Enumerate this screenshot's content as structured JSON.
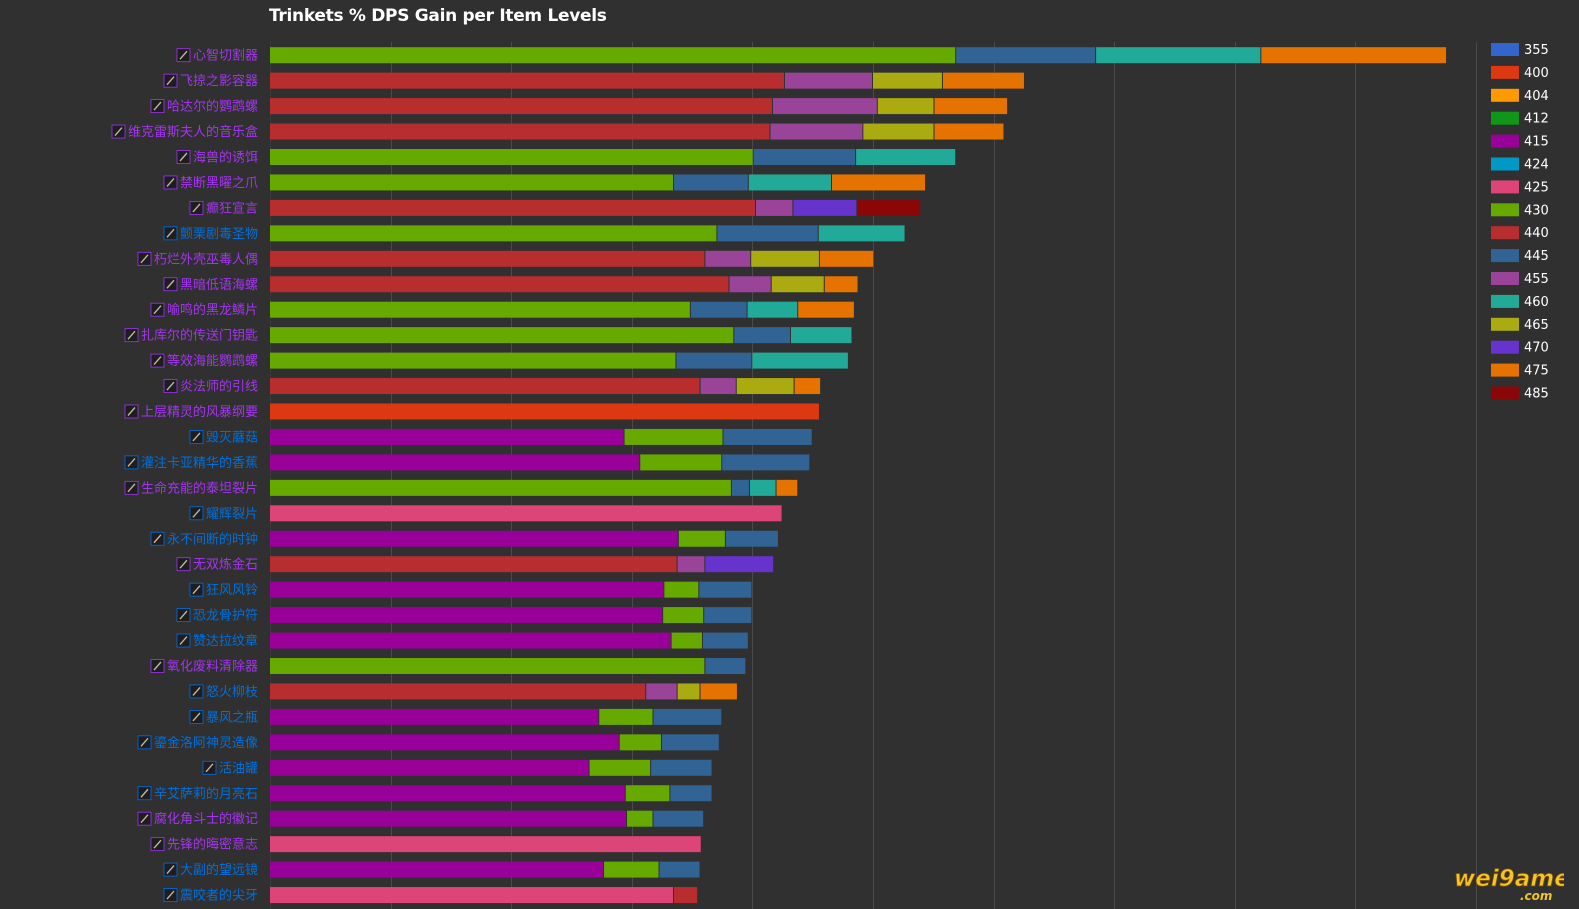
{
  "chart_data": {
    "type": "bar",
    "orientation": "horizontal",
    "stacked": true,
    "title": "Trinkets % DPS Gain per Item Levels",
    "grid": true,
    "legend_placement": "right",
    "legend": [
      {
        "name": "355",
        "color": "#3366cc"
      },
      {
        "name": "400",
        "color": "#dc3912"
      },
      {
        "name": "404",
        "color": "#ff9900"
      },
      {
        "name": "412",
        "color": "#109618"
      },
      {
        "name": "415",
        "color": "#990099"
      },
      {
        "name": "424",
        "color": "#0099c6"
      },
      {
        "name": "425",
        "color": "#dd4477"
      },
      {
        "name": "430",
        "color": "#66aa00"
      },
      {
        "name": "440",
        "color": "#b82e2e"
      },
      {
        "name": "445",
        "color": "#316395"
      },
      {
        "name": "455",
        "color": "#994499"
      },
      {
        "name": "460",
        "color": "#22aa99"
      },
      {
        "name": "465",
        "color": "#aaaa11"
      },
      {
        "name": "470",
        "color": "#6633cc"
      },
      {
        "name": "475",
        "color": "#e67300"
      },
      {
        "name": "485",
        "color": "#8b0707"
      }
    ],
    "xlim": [
      0,
      10
    ],
    "rows": [
      {
        "label": "心智切割器",
        "label_color": "#a335ee",
        "segments": [
          [
            "430",
            5.69
          ],
          [
            "445",
            1.16
          ],
          [
            "460",
            1.37
          ],
          [
            "475",
            1.54
          ]
        ]
      },
      {
        "label": "飞掠之影容器",
        "label_color": "#a335ee",
        "segments": [
          [
            "440",
            4.27
          ],
          [
            "455",
            0.73
          ],
          [
            "465",
            0.58
          ],
          [
            "475",
            0.68
          ]
        ]
      },
      {
        "label": "哈达尔的鹦鹉螺",
        "label_color": "#a335ee",
        "segments": [
          [
            "440",
            4.17
          ],
          [
            "455",
            0.87
          ],
          [
            "465",
            0.47
          ],
          [
            "475",
            0.61
          ]
        ]
      },
      {
        "label": "维克雷斯夫人的音乐盒",
        "label_color": "#a335ee",
        "segments": [
          [
            "440",
            4.15
          ],
          [
            "455",
            0.77
          ],
          [
            "465",
            0.59
          ],
          [
            "475",
            0.58
          ]
        ]
      },
      {
        "label": "海兽的诱饵",
        "label_color": "#a335ee",
        "segments": [
          [
            "430",
            4.01
          ],
          [
            "445",
            0.85
          ],
          [
            "460",
            0.83
          ]
        ]
      },
      {
        "label": "禁断黑曜之爪",
        "label_color": "#a335ee",
        "segments": [
          [
            "430",
            3.35
          ],
          [
            "445",
            0.62
          ],
          [
            "460",
            0.69
          ],
          [
            "475",
            0.78
          ]
        ]
      },
      {
        "label": "癫狂宣言",
        "label_color": "#a335ee",
        "segments": [
          [
            "440",
            4.03
          ],
          [
            "455",
            0.31
          ],
          [
            "470",
            0.53
          ],
          [
            "485",
            0.53
          ]
        ]
      },
      {
        "label": "颤栗剧毒圣物",
        "label_color": "#0070dd",
        "segments": [
          [
            "430",
            3.71
          ],
          [
            "445",
            0.84
          ],
          [
            "460",
            0.72
          ]
        ]
      },
      {
        "label": "朽烂外壳巫毒人偶",
        "label_color": "#a335ee",
        "segments": [
          [
            "440",
            3.61
          ],
          [
            "455",
            0.38
          ],
          [
            "465",
            0.57
          ],
          [
            "475",
            0.45
          ]
        ]
      },
      {
        "label": "黑暗低语海螺",
        "label_color": "#a335ee",
        "segments": [
          [
            "440",
            3.81
          ],
          [
            "455",
            0.35
          ],
          [
            "465",
            0.44
          ],
          [
            "475",
            0.28
          ]
        ]
      },
      {
        "label": "喻鸣的黑龙鳞片",
        "label_color": "#a335ee",
        "segments": [
          [
            "430",
            3.49
          ],
          [
            "445",
            0.47
          ],
          [
            "460",
            0.42
          ],
          [
            "475",
            0.47
          ]
        ]
      },
      {
        "label": "扎库尔的传送门钥匙",
        "label_color": "#a335ee",
        "segments": [
          [
            "430",
            3.85
          ],
          [
            "445",
            0.47
          ],
          [
            "460",
            0.51
          ]
        ]
      },
      {
        "label": "等效海能鹦鹉螺",
        "label_color": "#a335ee",
        "segments": [
          [
            "430",
            3.37
          ],
          [
            "445",
            0.63
          ],
          [
            "460",
            0.8
          ]
        ]
      },
      {
        "label": "炎法师的引线",
        "label_color": "#a335ee",
        "segments": [
          [
            "440",
            3.57
          ],
          [
            "455",
            0.3
          ],
          [
            "465",
            0.48
          ],
          [
            "475",
            0.22
          ]
        ]
      },
      {
        "label": "上层精灵的风暴纲要",
        "label_color": "#a335ee",
        "segments": [
          [
            "400",
            4.56
          ]
        ]
      },
      {
        "label": "毁灭蘑菇",
        "label_color": "#0070dd",
        "segments": [
          [
            "415",
            2.94
          ],
          [
            "430",
            0.82
          ],
          [
            "445",
            0.74
          ]
        ]
      },
      {
        "label": "灌注卡亚精华的香蕉",
        "label_color": "#0070dd",
        "segments": [
          [
            "415",
            3.07
          ],
          [
            "430",
            0.68
          ],
          [
            "445",
            0.73
          ]
        ]
      },
      {
        "label": "生命充能的泰坦裂片",
        "label_color": "#a335ee",
        "segments": [
          [
            "430",
            3.83
          ],
          [
            "445",
            0.15
          ],
          [
            "460",
            0.22
          ],
          [
            "475",
            0.18
          ]
        ]
      },
      {
        "label": "耀辉裂片",
        "label_color": "#0070dd",
        "segments": [
          [
            "425",
            4.25
          ]
        ]
      },
      {
        "label": "永不间断的时钟",
        "label_color": "#0070dd",
        "segments": [
          [
            "415",
            3.39
          ],
          [
            "430",
            0.39
          ],
          [
            "445",
            0.44
          ]
        ]
      },
      {
        "label": "无双炼金石",
        "label_color": "#a335ee",
        "segments": [
          [
            "440",
            3.38
          ],
          [
            "455",
            0.23
          ],
          [
            "470",
            0.57
          ]
        ]
      },
      {
        "label": "狂风风铃",
        "label_color": "#0070dd",
        "segments": [
          [
            "415",
            3.27
          ],
          [
            "430",
            0.29
          ],
          [
            "445",
            0.44
          ]
        ]
      },
      {
        "label": "恐龙骨护符",
        "label_color": "#0070dd",
        "segments": [
          [
            "415",
            3.26
          ],
          [
            "430",
            0.34
          ],
          [
            "445",
            0.4
          ]
        ]
      },
      {
        "label": "赞达拉纹章",
        "label_color": "#0070dd",
        "segments": [
          [
            "415",
            3.33
          ],
          [
            "430",
            0.26
          ],
          [
            "445",
            0.38
          ]
        ]
      },
      {
        "label": "氧化废料清除器",
        "label_color": "#a335ee",
        "segments": [
          [
            "430",
            3.61
          ],
          [
            "445",
            0.34
          ]
        ]
      },
      {
        "label": "怒火柳枝",
        "label_color": "#0070dd",
        "segments": [
          [
            "440",
            3.12
          ],
          [
            "455",
            0.26
          ],
          [
            "465",
            0.19
          ],
          [
            "475",
            0.31
          ]
        ]
      },
      {
        "label": "暴风之瓶",
        "label_color": "#0070dd",
        "segments": [
          [
            "415",
            2.73
          ],
          [
            "430",
            0.45
          ],
          [
            "445",
            0.57
          ]
        ]
      },
      {
        "label": "鎏金洛阿神灵造像",
        "label_color": "#0070dd",
        "segments": [
          [
            "415",
            2.9
          ],
          [
            "430",
            0.35
          ],
          [
            "445",
            0.48
          ]
        ]
      },
      {
        "label": "活油罐",
        "label_color": "#0070dd",
        "segments": [
          [
            "415",
            2.65
          ],
          [
            "430",
            0.51
          ],
          [
            "445",
            0.51
          ]
        ]
      },
      {
        "label": "辛艾萨莉的月亮石",
        "label_color": "#0070dd",
        "segments": [
          [
            "415",
            2.95
          ],
          [
            "430",
            0.37
          ],
          [
            "445",
            0.35
          ]
        ]
      },
      {
        "label": "腐化角斗士的徽记",
        "label_color": "#a335ee",
        "segments": [
          [
            "415",
            2.96
          ],
          [
            "430",
            0.22
          ],
          [
            "445",
            0.42
          ]
        ]
      },
      {
        "label": "先锋的晦密意志",
        "label_color": "#a335ee",
        "segments": [
          [
            "425",
            3.58
          ]
        ]
      },
      {
        "label": "大副的望远镜",
        "label_color": "#0070dd",
        "segments": [
          [
            "415",
            2.77
          ],
          [
            "430",
            0.46
          ],
          [
            "445",
            0.34
          ]
        ]
      },
      {
        "label": "震咬者的尖牙",
        "label_color": "#0070dd",
        "segments": [
          [
            "425",
            3.35
          ],
          [
            "440",
            0.2
          ]
        ]
      }
    ]
  }
}
